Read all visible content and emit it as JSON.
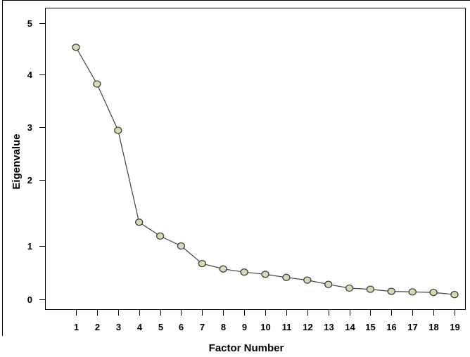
{
  "chart_data": {
    "type": "line",
    "title": "",
    "xlabel": "Factor Number",
    "ylabel": "Eigenvalue",
    "x_ticks": [
      "1",
      "2",
      "3",
      "4",
      "5",
      "6",
      "7",
      "8",
      "9",
      "10",
      "11",
      "12",
      "13",
      "14",
      "15",
      "16",
      "17",
      "18",
      "19"
    ],
    "y_ticks": [
      "0",
      "1",
      "2",
      "3",
      "4",
      "5"
    ],
    "x": [
      1,
      2,
      3,
      4,
      5,
      6,
      7,
      8,
      9,
      10,
      11,
      12,
      13,
      14,
      15,
      16,
      17,
      18,
      19
    ],
    "values": [
      4.53,
      3.82,
      2.94,
      1.36,
      1.15,
      1.0,
      0.67,
      0.57,
      0.51,
      0.47,
      0.41,
      0.36,
      0.28,
      0.21,
      0.19,
      0.15,
      0.14,
      0.13,
      0.09
    ],
    "xlim": [
      0,
      20
    ],
    "grid": false,
    "colors": {
      "marker_fill": "#d9d9b5",
      "marker_stroke": "#3f3f3f",
      "line": "#404040",
      "frame": "#000000"
    }
  }
}
